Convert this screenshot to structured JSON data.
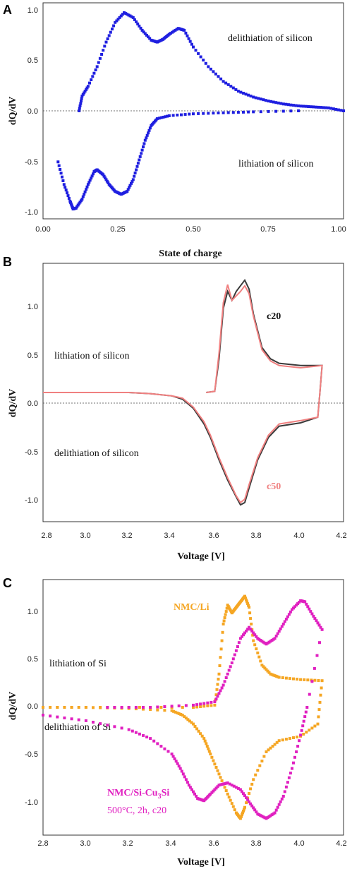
{
  "chart_data": [
    {
      "panel": "A",
      "type": "scatter",
      "xlabel": "State of charge",
      "ylabel": "dQ/dV",
      "xlim": [
        0.0,
        1.0
      ],
      "ylim": [
        -1.1,
        1.1
      ],
      "xticks": [
        "0.00",
        "0.25",
        "0.50",
        "0.75",
        "1.00"
      ],
      "yticks": [
        "-1.0",
        "-0.5",
        "0.0",
        "0.5",
        "1.0"
      ],
      "annotations": [
        "delithiation of silicon",
        "lithiation of silicon"
      ],
      "series": [
        {
          "color": "#1f1fe0",
          "points": [
            [
              0.12,
              0.0
            ],
            [
              0.13,
              0.15
            ],
            [
              0.15,
              0.25
            ],
            [
              0.18,
              0.45
            ],
            [
              0.21,
              0.7
            ],
            [
              0.24,
              0.9
            ],
            [
              0.27,
              1.0
            ],
            [
              0.3,
              0.95
            ],
            [
              0.33,
              0.82
            ],
            [
              0.36,
              0.72
            ],
            [
              0.38,
              0.7
            ],
            [
              0.4,
              0.73
            ],
            [
              0.42,
              0.78
            ],
            [
              0.45,
              0.84
            ],
            [
              0.47,
              0.82
            ],
            [
              0.5,
              0.65
            ],
            [
              0.55,
              0.45
            ],
            [
              0.6,
              0.3
            ],
            [
              0.65,
              0.2
            ],
            [
              0.7,
              0.14
            ],
            [
              0.75,
              0.1
            ],
            [
              0.8,
              0.07
            ],
            [
              0.85,
              0.05
            ],
            [
              0.9,
              0.04
            ],
            [
              0.95,
              0.03
            ],
            [
              1.0,
              0.0
            ]
          ]
        },
        {
          "color": "#1f1fe0",
          "points": [
            [
              0.05,
              -0.52
            ],
            [
              0.07,
              -0.75
            ],
            [
              0.09,
              -0.92
            ],
            [
              0.1,
              -1.0
            ],
            [
              0.11,
              -0.99
            ],
            [
              0.13,
              -0.9
            ],
            [
              0.15,
              -0.75
            ],
            [
              0.17,
              -0.62
            ],
            [
              0.18,
              -0.6
            ],
            [
              0.2,
              -0.65
            ],
            [
              0.22,
              -0.75
            ],
            [
              0.24,
              -0.82
            ],
            [
              0.26,
              -0.85
            ],
            [
              0.28,
              -0.82
            ],
            [
              0.3,
              -0.7
            ],
            [
              0.32,
              -0.5
            ],
            [
              0.34,
              -0.3
            ],
            [
              0.36,
              -0.15
            ],
            [
              0.38,
              -0.08
            ],
            [
              0.42,
              -0.05
            ],
            [
              0.5,
              -0.03
            ],
            [
              0.6,
              -0.02
            ],
            [
              0.7,
              -0.01
            ],
            [
              0.85,
              0.0
            ]
          ]
        }
      ]
    },
    {
      "panel": "B",
      "type": "line",
      "xlabel": "Voltage [V]",
      "ylabel": "dQ/dV",
      "xlim": [
        2.8,
        4.2
      ],
      "ylim": [
        -1.15,
        1.15
      ],
      "xticks": [
        "2.8",
        "3.0",
        "3.2",
        "3.4",
        "3.6",
        "3.8",
        "4.0",
        "4.2"
      ],
      "yticks": [
        "-1.0",
        "-0.5",
        "0.0",
        "0.5",
        "1.0"
      ],
      "annotations": [
        "lithiation of silicon",
        "delithiation of silicon"
      ],
      "series": [
        {
          "name": "c20",
          "color": "#3a3a3a",
          "points": [
            [
              3.56,
              0.0
            ],
            [
              3.6,
              0.01
            ],
            [
              3.62,
              0.3
            ],
            [
              3.64,
              0.75
            ],
            [
              3.66,
              0.9
            ],
            [
              3.68,
              0.82
            ],
            [
              3.7,
              0.9
            ],
            [
              3.72,
              0.95
            ],
            [
              3.74,
              1.0
            ],
            [
              3.76,
              0.92
            ],
            [
              3.78,
              0.7
            ],
            [
              3.82,
              0.4
            ],
            [
              3.86,
              0.3
            ],
            [
              3.9,
              0.26
            ],
            [
              4.0,
              0.24
            ],
            [
              4.1,
              0.24
            ],
            [
              4.09,
              0.0
            ],
            [
              4.08,
              -0.22
            ],
            [
              4.0,
              -0.27
            ],
            [
              3.9,
              -0.3
            ],
            [
              3.85,
              -0.4
            ],
            [
              3.8,
              -0.6
            ],
            [
              3.76,
              -0.85
            ],
            [
              3.74,
              -0.98
            ],
            [
              3.72,
              -1.0
            ],
            [
              3.7,
              -0.93
            ],
            [
              3.66,
              -0.78
            ],
            [
              3.62,
              -0.6
            ],
            [
              3.58,
              -0.4
            ],
            [
              3.55,
              -0.28
            ],
            [
              3.5,
              -0.14
            ],
            [
              3.45,
              -0.06
            ],
            [
              3.4,
              -0.03
            ],
            [
              3.3,
              -0.01
            ],
            [
              3.2,
              0.0
            ],
            [
              3.0,
              0.0
            ],
            [
              2.8,
              0.0
            ]
          ]
        },
        {
          "name": "c50",
          "color": "#f08080",
          "points": [
            [
              3.56,
              0.0
            ],
            [
              3.6,
              0.01
            ],
            [
              3.62,
              0.35
            ],
            [
              3.64,
              0.8
            ],
            [
              3.66,
              0.96
            ],
            [
              3.68,
              0.82
            ],
            [
              3.7,
              0.86
            ],
            [
              3.72,
              0.9
            ],
            [
              3.74,
              0.95
            ],
            [
              3.76,
              0.88
            ],
            [
              3.78,
              0.68
            ],
            [
              3.82,
              0.38
            ],
            [
              3.86,
              0.28
            ],
            [
              3.9,
              0.24
            ],
            [
              4.0,
              0.22
            ],
            [
              4.1,
              0.24
            ],
            [
              4.09,
              0.0
            ],
            [
              4.08,
              -0.22
            ],
            [
              4.0,
              -0.25
            ],
            [
              3.9,
              -0.28
            ],
            [
              3.85,
              -0.38
            ],
            [
              3.8,
              -0.58
            ],
            [
              3.76,
              -0.82
            ],
            [
              3.74,
              -0.95
            ],
            [
              3.72,
              -0.98
            ],
            [
              3.7,
              -0.92
            ],
            [
              3.66,
              -0.76
            ],
            [
              3.62,
              -0.58
            ],
            [
              3.58,
              -0.38
            ],
            [
              3.55,
              -0.26
            ],
            [
              3.5,
              -0.13
            ],
            [
              3.45,
              -0.05
            ],
            [
              3.4,
              -0.03
            ],
            [
              3.3,
              -0.01
            ],
            [
              3.2,
              0.0
            ],
            [
              3.0,
              0.0
            ],
            [
              2.8,
              0.0
            ]
          ]
        }
      ]
    },
    {
      "panel": "C",
      "type": "scatter",
      "xlabel": "Voltage [V]",
      "ylabel": "dQ/dV",
      "xlim": [
        2.8,
        4.2
      ],
      "ylim": [
        -1.15,
        1.15
      ],
      "xticks": [
        "2.8",
        "3.0",
        "3.2",
        "3.4",
        "3.6",
        "3.8",
        "4.0",
        "4.2"
      ],
      "yticks": [
        "-1.0",
        "-0.5",
        "0.0",
        "0.5",
        "1.0"
      ],
      "annotations": [
        "lithiation of Si",
        "delithiation of Si"
      ],
      "series": [
        {
          "name": "NMC/Li",
          "color": "#f5a623",
          "points": [
            [
              2.8,
              0.0
            ],
            [
              3.2,
              0.0
            ],
            [
              3.5,
              0.0
            ],
            [
              3.6,
              0.02
            ],
            [
              3.62,
              0.3
            ],
            [
              3.64,
              0.75
            ],
            [
              3.66,
              0.92
            ],
            [
              3.68,
              0.85
            ],
            [
              3.7,
              0.9
            ],
            [
              3.72,
              0.95
            ],
            [
              3.74,
              1.0
            ],
            [
              3.76,
              0.9
            ],
            [
              3.78,
              0.6
            ],
            [
              3.82,
              0.38
            ],
            [
              3.86,
              0.3
            ],
            [
              3.9,
              0.27
            ],
            [
              4.0,
              0.25
            ],
            [
              4.1,
              0.24
            ],
            [
              4.08,
              -0.15
            ],
            [
              4.0,
              -0.26
            ],
            [
              3.9,
              -0.3
            ],
            [
              3.84,
              -0.4
            ],
            [
              3.78,
              -0.65
            ],
            [
              3.74,
              -0.9
            ],
            [
              3.72,
              -1.0
            ],
            [
              3.7,
              -0.95
            ],
            [
              3.66,
              -0.78
            ],
            [
              3.62,
              -0.6
            ],
            [
              3.58,
              -0.42
            ],
            [
              3.55,
              -0.28
            ],
            [
              3.5,
              -0.15
            ],
            [
              3.45,
              -0.07
            ],
            [
              3.4,
              -0.03
            ],
            [
              3.2,
              -0.01
            ],
            [
              3.0,
              0.0
            ],
            [
              2.8,
              0.0
            ]
          ]
        },
        {
          "name": "NMC/Si-Cu3Si",
          "color": "#e020c0",
          "points": [
            [
              3.1,
              0.0
            ],
            [
              3.3,
              0.0
            ],
            [
              3.5,
              0.02
            ],
            [
              3.6,
              0.05
            ],
            [
              3.64,
              0.2
            ],
            [
              3.68,
              0.4
            ],
            [
              3.72,
              0.62
            ],
            [
              3.76,
              0.72
            ],
            [
              3.8,
              0.62
            ],
            [
              3.84,
              0.57
            ],
            [
              3.88,
              0.62
            ],
            [
              3.92,
              0.75
            ],
            [
              3.96,
              0.88
            ],
            [
              4.0,
              0.96
            ],
            [
              4.02,
              0.95
            ],
            [
              4.06,
              0.82
            ],
            [
              4.1,
              0.7
            ],
            [
              4.03,
              0.0
            ],
            [
              4.0,
              -0.25
            ],
            [
              3.96,
              -0.55
            ],
            [
              3.92,
              -0.8
            ],
            [
              3.88,
              -0.95
            ],
            [
              3.84,
              -1.0
            ],
            [
              3.8,
              -0.96
            ],
            [
              3.76,
              -0.85
            ],
            [
              3.72,
              -0.74
            ],
            [
              3.66,
              -0.68
            ],
            [
              3.62,
              -0.7
            ],
            [
              3.58,
              -0.78
            ],
            [
              3.55,
              -0.84
            ],
            [
              3.52,
              -0.82
            ],
            [
              3.48,
              -0.7
            ],
            [
              3.44,
              -0.55
            ],
            [
              3.4,
              -0.42
            ],
            [
              3.3,
              -0.28
            ],
            [
              3.2,
              -0.2
            ],
            [
              3.0,
              -0.12
            ],
            [
              2.8,
              -0.07
            ]
          ]
        }
      ],
      "legend_labels": {
        "nmc_li": "NMC/Li",
        "nmc_si_base": "NMC/Si-Cu",
        "nmc_si_sub": "3",
        "nmc_si_end": "Si",
        "nmc_si_cond": "500°C, 2h, c20"
      }
    }
  ],
  "panel_a": {
    "letter": "A",
    "ylabel": "dQ/dV",
    "xlabel": "State of charge",
    "yticks": [
      "1.0",
      "0.5",
      "0.0",
      "-0.5",
      "-1.0"
    ],
    "xticks": [
      "0.00",
      "0.25",
      "0.50",
      "0.75",
      "1.00"
    ],
    "annot_top": "delithiation of silicon",
    "annot_bottom": "lithiation of silicon"
  },
  "panel_b": {
    "letter": "B",
    "ylabel": "dQ/dV",
    "xlabel": "Voltage [V]",
    "yticks": [
      "1.0",
      "0.5",
      "0.0",
      "-0.5",
      "-1.0"
    ],
    "xticks": [
      "2.8",
      "3.0",
      "3.2",
      "3.4",
      "3.6",
      "3.8",
      "4.0",
      "4.2"
    ],
    "annot_top": "lithiation of silicon",
    "annot_bottom": "delithiation of silicon",
    "label_c20": "c20",
    "label_c50": "c50"
  },
  "panel_c": {
    "letter": "C",
    "ylabel": "dQ/dV",
    "xlabel": "Voltage [V]",
    "yticks": [
      "1.0",
      "0.5",
      "0.0",
      "-0.5",
      "-1.0"
    ],
    "xticks": [
      "2.8",
      "3.0",
      "3.2",
      "3.4",
      "3.6",
      "3.8",
      "4.0",
      "4.2"
    ],
    "annot_top": "lithiation of Si",
    "annot_bottom": "delithiation of Si"
  }
}
